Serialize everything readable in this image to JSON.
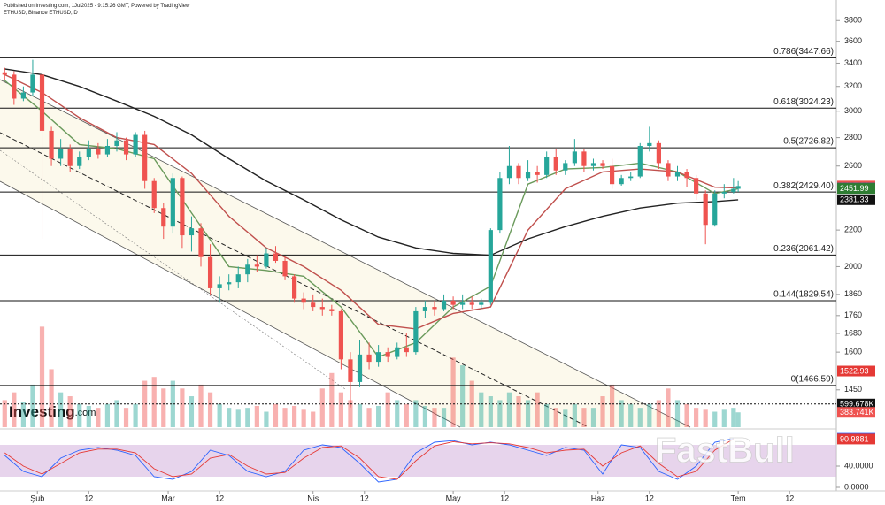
{
  "header": {
    "published": "Published on Investing.com, 1Jul2025 - 9:15:26 GMT, Powered by TradingView",
    "symbol": "ETHUSD, Binance ETHUSD, D"
  },
  "watermarks": {
    "logo": "Investing",
    "logo_suffix": ".com",
    "brand": "FastBull"
  },
  "chart_data": {
    "type": "candlestick",
    "log_scale": true,
    "grid": false,
    "up_color": "#26a69a",
    "down_color": "#ef5350",
    "xlim": [
      24,
      203
    ],
    "xticks": [
      {
        "value": 32,
        "label": "Şub"
      },
      {
        "value": 43,
        "label": "12"
      },
      {
        "value": 60,
        "label": "Mar"
      },
      {
        "value": 71,
        "label": "12"
      },
      {
        "value": 91,
        "label": "Nis"
      },
      {
        "value": 102,
        "label": "12"
      },
      {
        "value": 121,
        "label": "May"
      },
      {
        "value": 132,
        "label": "12"
      },
      {
        "value": 152,
        "label": "Haz"
      },
      {
        "value": 163,
        "label": "12"
      },
      {
        "value": 182,
        "label": "Tem"
      },
      {
        "value": 193,
        "label": "12"
      }
    ],
    "ylim": [
      1400,
      3900
    ],
    "yticks": [
      3800,
      3600,
      3400,
      3200,
      3000,
      2800,
      2600,
      2200,
      2000,
      1860,
      1760,
      1680,
      1600,
      1450
    ],
    "x": [
      25,
      27,
      29,
      31,
      33,
      35,
      37,
      39,
      41,
      43,
      45,
      47,
      49,
      51,
      53,
      55,
      57,
      59,
      61,
      63,
      65,
      67,
      69,
      71,
      73,
      75,
      77,
      79,
      81,
      83,
      85,
      87,
      89,
      91,
      93,
      95,
      97,
      99,
      101,
      103,
      105,
      107,
      109,
      111,
      113,
      115,
      117,
      119,
      121,
      123,
      125,
      127,
      129,
      131,
      133,
      135,
      137,
      139,
      141,
      143,
      145,
      147,
      149,
      151,
      153,
      155,
      157,
      159,
      161,
      163,
      165,
      167,
      169,
      171,
      173,
      175,
      177,
      179,
      181,
      182
    ],
    "ohlc": [
      [
        3320,
        3360,
        3250,
        3300
      ],
      [
        3300,
        3330,
        3050,
        3100
      ],
      [
        3100,
        3200,
        3080,
        3150
      ],
      [
        3150,
        3430,
        3120,
        3300
      ],
      [
        3300,
        3320,
        2150,
        2850
      ],
      [
        2850,
        2880,
        2600,
        2650
      ],
      [
        2650,
        2790,
        2600,
        2720
      ],
      [
        2720,
        2750,
        2560,
        2600
      ],
      [
        2600,
        2700,
        2580,
        2660
      ],
      [
        2660,
        2780,
        2640,
        2720
      ],
      [
        2720,
        2760,
        2650,
        2680
      ],
      [
        2680,
        2790,
        2660,
        2740
      ],
      [
        2740,
        2840,
        2700,
        2780
      ],
      [
        2780,
        2800,
        2640,
        2680
      ],
      [
        2680,
        2840,
        2660,
        2820
      ],
      [
        2820,
        2850,
        2450,
        2500
      ],
      [
        2500,
        2520,
        2300,
        2330
      ],
      [
        2330,
        2360,
        2150,
        2220
      ],
      [
        2220,
        2550,
        2180,
        2520
      ],
      [
        2520,
        2530,
        2100,
        2170
      ],
      [
        2170,
        2280,
        2080,
        2210
      ],
      [
        2210,
        2240,
        2000,
        2050
      ],
      [
        2050,
        2120,
        1860,
        1890
      ],
      [
        1890,
        1950,
        1820,
        1910
      ],
      [
        1910,
        1960,
        1880,
        1920
      ],
      [
        1920,
        2000,
        1890,
        1960
      ],
      [
        1960,
        2040,
        1920,
        2010
      ],
      [
        2010,
        2060,
        1970,
        2000
      ],
      [
        2000,
        2100,
        1990,
        2070
      ],
      [
        2070,
        2110,
        2020,
        2030
      ],
      [
        2030,
        2050,
        1930,
        1950
      ],
      [
        1950,
        1960,
        1820,
        1840
      ],
      [
        1840,
        1870,
        1790,
        1820
      ],
      [
        1820,
        1860,
        1780,
        1800
      ],
      [
        1800,
        1840,
        1760,
        1790
      ],
      [
        1790,
        1810,
        1760,
        1780
      ],
      [
        1780,
        1790,
        1530,
        1570
      ],
      [
        1570,
        1600,
        1385,
        1480
      ],
      [
        1480,
        1650,
        1460,
        1590
      ],
      [
        1590,
        1640,
        1530,
        1560
      ],
      [
        1560,
        1630,
        1540,
        1600
      ],
      [
        1600,
        1620,
        1560,
        1580
      ],
      [
        1580,
        1640,
        1570,
        1620
      ],
      [
        1620,
        1680,
        1580,
        1600
      ],
      [
        1600,
        1800,
        1590,
        1780
      ],
      [
        1780,
        1830,
        1750,
        1800
      ],
      [
        1800,
        1830,
        1760,
        1790
      ],
      [
        1790,
        1860,
        1780,
        1830
      ],
      [
        1830,
        1850,
        1790,
        1810
      ],
      [
        1810,
        1860,
        1790,
        1820
      ],
      [
        1820,
        1850,
        1790,
        1810
      ],
      [
        1810,
        1840,
        1790,
        1820
      ],
      [
        1820,
        2210,
        1810,
        2200
      ],
      [
        2200,
        2560,
        2180,
        2520
      ],
      [
        2520,
        2740,
        2480,
        2600
      ],
      [
        2600,
        2620,
        2480,
        2520
      ],
      [
        2520,
        2640,
        2500,
        2560
      ],
      [
        2560,
        2600,
        2490,
        2540
      ],
      [
        2540,
        2700,
        2520,
        2660
      ],
      [
        2660,
        2720,
        2540,
        2570
      ],
      [
        2570,
        2640,
        2540,
        2620
      ],
      [
        2620,
        2790,
        2600,
        2700
      ],
      [
        2700,
        2720,
        2560,
        2600
      ],
      [
        2600,
        2650,
        2570,
        2620
      ],
      [
        2620,
        2640,
        2580,
        2600
      ],
      [
        2600,
        2650,
        2450,
        2480
      ],
      [
        2480,
        2540,
        2470,
        2520
      ],
      [
        2520,
        2560,
        2500,
        2530
      ],
      [
        2530,
        2760,
        2520,
        2740
      ],
      [
        2740,
        2880,
        2700,
        2760
      ],
      [
        2760,
        2780,
        2580,
        2620
      ],
      [
        2620,
        2640,
        2500,
        2530
      ],
      [
        2530,
        2600,
        2500,
        2560
      ],
      [
        2560,
        2580,
        2460,
        2520
      ],
      [
        2520,
        2540,
        2380,
        2420
      ],
      [
        2420,
        2440,
        2120,
        2230
      ],
      [
        2230,
        2440,
        2220,
        2420
      ],
      [
        2420,
        2480,
        2390,
        2430
      ],
      [
        2430,
        2520,
        2420,
        2450
      ],
      [
        2450,
        2500,
        2430,
        2467.6
      ]
    ],
    "overlay_x": [
      25,
      33,
      41,
      49,
      57,
      65,
      73,
      81,
      89,
      97,
      105,
      113,
      121,
      129,
      137,
      145,
      153,
      161,
      169,
      177,
      182
    ],
    "overlays": [
      {
        "color": "#6a9a5b",
        "values": [
          3250,
          3000,
          2750,
          2720,
          2650,
          2300,
          2000,
          1980,
          1950,
          1800,
          1580,
          1640,
          1800,
          1900,
          2480,
          2580,
          2590,
          2620,
          2560,
          2420,
          2450
        ]
      },
      {
        "color": "#c0504d",
        "values": [
          3300,
          3150,
          2950,
          2800,
          2750,
          2550,
          2280,
          2100,
          2000,
          1880,
          1720,
          1700,
          1770,
          1800,
          2200,
          2450,
          2560,
          2580,
          2560,
          2460,
          2455
        ]
      },
      {
        "color": "#222222",
        "values": [
          3350,
          3300,
          3200,
          3080,
          2960,
          2820,
          2650,
          2500,
          2380,
          2260,
          2160,
          2100,
          2070,
          2060,
          2150,
          2220,
          2280,
          2330,
          2360,
          2370,
          2381
        ]
      }
    ],
    "fib_color": "#111111",
    "fib_levels": [
      {
        "value": 3447.66,
        "label": "0.786(3447.66)"
      },
      {
        "value": 3024.23,
        "label": "0.618(3024.23)"
      },
      {
        "value": 2726.82,
        "label": "0.5(2726.82)"
      },
      {
        "value": 2429.4,
        "label": "0.382(2429.40)"
      },
      {
        "value": 2061.42,
        "label": "0.236(2061.42)"
      },
      {
        "value": 1829.54,
        "label": "0.144(1829.54)"
      },
      {
        "value": 1466.59,
        "label": "0(1466.59)"
      }
    ],
    "price_tags": [
      {
        "value": 2467.6,
        "label": "2467.60",
        "color": "#ef5350"
      },
      {
        "value": 2455.13,
        "label": "2455.13",
        "color": "#3d5a80"
      },
      {
        "value": 2451.99,
        "label": "2451.99",
        "color": "#2e7d32"
      },
      {
        "value": 2381.33,
        "label": "2381.33",
        "color": "#111111"
      },
      {
        "value": 1522.93,
        "label": "1522.93",
        "color": "#e53935",
        "line": true
      }
    ],
    "volume": {
      "ylim": [
        0,
        2700000
      ],
      "values": [
        700000,
        900000,
        650000,
        1100000,
        2600000,
        1500000,
        900000,
        800000,
        600000,
        550000,
        500000,
        600000,
        700000,
        500000,
        600000,
        1200000,
        1300000,
        1000000,
        1200000,
        1000000,
        800000,
        1100000,
        900000,
        600000,
        500000,
        450000,
        500000,
        550000,
        400000,
        600000,
        500000,
        550000,
        450000,
        400000,
        1000000,
        1400000,
        900000,
        700000,
        600000,
        500000,
        550000,
        900000,
        700000,
        600000,
        700000,
        550000,
        500000,
        500000,
        1800000,
        1600000,
        1200000,
        900000,
        800000,
        700000,
        900000,
        800000,
        700000,
        900000,
        600000,
        500000,
        450000,
        600000,
        500000,
        500000,
        800000,
        1100000,
        700000,
        600000,
        500000,
        600000,
        700000,
        1000000,
        700000,
        600000,
        500000,
        450000,
        400000,
        450000,
        500000,
        383741
      ],
      "tags": [
        {
          "value": 599678,
          "label": "599.678K",
          "color": "#111111",
          "line": true
        },
        {
          "value": 383741,
          "label": "383.741K",
          "color": "#ef5350"
        }
      ]
    },
    "stochastic": {
      "ylim": [
        0,
        100
      ],
      "band": [
        20,
        80
      ],
      "band_color": "#d7b8e0",
      "yticks": [
        {
          "value": 40,
          "label": "40.0000"
        },
        {
          "value": 0,
          "label": "0.0000"
        }
      ],
      "x": [
        25,
        29,
        33,
        37,
        41,
        45,
        49,
        53,
        57,
        61,
        65,
        69,
        73,
        77,
        81,
        85,
        89,
        93,
        97,
        101,
        105,
        109,
        113,
        117,
        121,
        125,
        129,
        133,
        137,
        141,
        145,
        149,
        153,
        157,
        161,
        165,
        169,
        173,
        177,
        181
      ],
      "series": [
        {
          "color": "#2962ff",
          "values": [
            60,
            30,
            20,
            55,
            70,
            75,
            70,
            60,
            20,
            15,
            30,
            70,
            60,
            30,
            20,
            30,
            70,
            80,
            75,
            45,
            10,
            15,
            65,
            85,
            88,
            80,
            85,
            80,
            70,
            60,
            75,
            70,
            25,
            80,
            75,
            30,
            15,
            40,
            85,
            92
          ]
        },
        {
          "color": "#e53935",
          "values": [
            65,
            40,
            25,
            45,
            65,
            72,
            72,
            65,
            35,
            20,
            25,
            55,
            62,
            40,
            25,
            28,
            55,
            75,
            78,
            55,
            20,
            15,
            50,
            78,
            86,
            82,
            84,
            82,
            75,
            65,
            70,
            72,
            40,
            65,
            78,
            45,
            20,
            30,
            70,
            91
          ]
        }
      ],
      "tags": [
        {
          "value": 92.293,
          "label": "92.2930",
          "color": "#2962ff"
        },
        {
          "value": 90.9881,
          "label": "90.9881",
          "color": "#e53935"
        }
      ]
    }
  }
}
